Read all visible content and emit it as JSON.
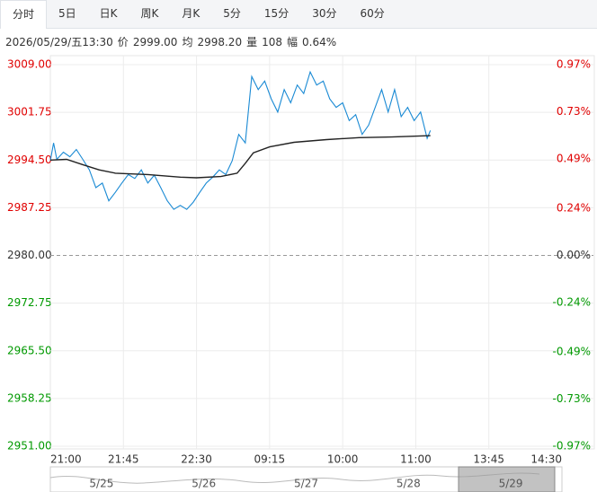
{
  "tabs": [
    "分时",
    "5日",
    "日K",
    "周K",
    "月K",
    "5分",
    "15分",
    "30分",
    "60分"
  ],
  "info": [
    "2026/05/29/五13:30",
    "价",
    "2999.00",
    "均",
    "2998.20",
    "量",
    "108",
    "幅",
    "0.64%"
  ],
  "chart_data": {
    "type": "line",
    "xlim": [
      0,
      315
    ],
    "xticks": [
      {
        "value": 0,
        "label": "21:00"
      },
      {
        "value": 45,
        "label": "21:45"
      },
      {
        "value": 90,
        "label": "22:30"
      },
      {
        "value": 135,
        "label": "09:15"
      },
      {
        "value": 180,
        "label": "10:00"
      },
      {
        "value": 225,
        "label": "11:00"
      },
      {
        "value": 270,
        "label": "13:45"
      },
      {
        "value": 315,
        "label": "14:30"
      }
    ],
    "ylim": [
      2951,
      3009
    ],
    "yticks": [
      {
        "value": 3009,
        "label": "3009.00"
      },
      {
        "value": 3001.75,
        "label": "3001.75"
      },
      {
        "value": 2994.5,
        "label": "2994.50"
      },
      {
        "value": 2987.25,
        "label": "2987.25"
      },
      {
        "value": 2980,
        "label": "2980.00"
      },
      {
        "value": 2972.75,
        "label": "2972.75"
      },
      {
        "value": 2965.5,
        "label": "2965.50"
      },
      {
        "value": 2958.25,
        "label": "2958.25"
      },
      {
        "value": 2951,
        "label": "2951.00"
      }
    ],
    "y2lim": [
      -0.97,
      0.97
    ],
    "y2ticks": [
      {
        "value": 0.97,
        "label": "0.97%"
      },
      {
        "value": 0.73,
        "label": "0.73%"
      },
      {
        "value": 0.49,
        "label": "0.49%"
      },
      {
        "value": 0.24,
        "label": "0.24%"
      },
      {
        "value": 0,
        "label": "0.00%"
      },
      {
        "value": -0.24,
        "label": "-0.24%"
      },
      {
        "value": -0.49,
        "label": "-0.49%"
      },
      {
        "value": -0.73,
        "label": "-0.73%"
      },
      {
        "value": -0.97,
        "label": "-0.97%"
      }
    ],
    "base": 2980,
    "up_color": "#e00000",
    "down_color": "#009900",
    "grid": true,
    "series": [
      {
        "color": "#1a8ad4",
        "x": [
          0,
          2,
          4,
          8,
          12,
          16,
          20,
          24,
          28,
          32,
          36,
          40,
          44,
          48,
          52,
          56,
          60,
          64,
          68,
          72,
          76,
          80,
          84,
          88,
          92,
          96,
          100,
          104,
          108,
          112,
          116,
          120,
          124,
          128,
          132,
          136,
          140,
          144,
          148,
          152,
          156,
          160,
          164,
          168,
          172,
          176,
          180,
          184,
          188,
          192,
          196,
          200,
          204,
          208,
          212,
          216,
          220,
          224,
          228,
          232,
          234
        ],
        "values": [
          2994.4,
          2997.1,
          2994.6,
          2995.7,
          2995.0,
          2996.1,
          2994.6,
          2993.0,
          2990.3,
          2991.0,
          2988.3,
          2989.6,
          2991.0,
          2992.3,
          2991.7,
          2993.0,
          2991.0,
          2992.2,
          2990.3,
          2988.3,
          2987.0,
          2987.6,
          2987.0,
          2988.1,
          2989.6,
          2991.0,
          2991.9,
          2993.0,
          2992.3,
          2994.4,
          2998.4,
          2997.1,
          3007.2,
          3005.2,
          3006.5,
          3003.8,
          3001.8,
          3005.2,
          3003.2,
          3005.9,
          3004.6,
          3007.9,
          3005.9,
          3006.5,
          3003.8,
          3002.5,
          3003.2,
          3000.5,
          3001.4,
          2998.4,
          2999.8,
          3002.5,
          3005.2,
          3001.8,
          3005.2,
          3001.1,
          3002.5,
          3000.5,
          3001.8,
          2997.8,
          2999.0
        ]
      },
      {
        "color": "#222222",
        "x": [
          0,
          10,
          20,
          30,
          40,
          60,
          80,
          90,
          105,
          115,
          120,
          125,
          135,
          150,
          170,
          190,
          210,
          234
        ],
        "values": [
          2994.5,
          2994.6,
          2993.8,
          2993.0,
          2992.5,
          2992.3,
          2991.9,
          2991.8,
          2992.0,
          2992.5,
          2994.0,
          2995.6,
          2996.5,
          2997.2,
          2997.6,
          2997.9,
          2998.0,
          2998.2
        ]
      }
    ],
    "navigator": {
      "dates": [
        "5/25",
        "5/26",
        "5/27",
        "5/28",
        "5/29"
      ]
    }
  }
}
